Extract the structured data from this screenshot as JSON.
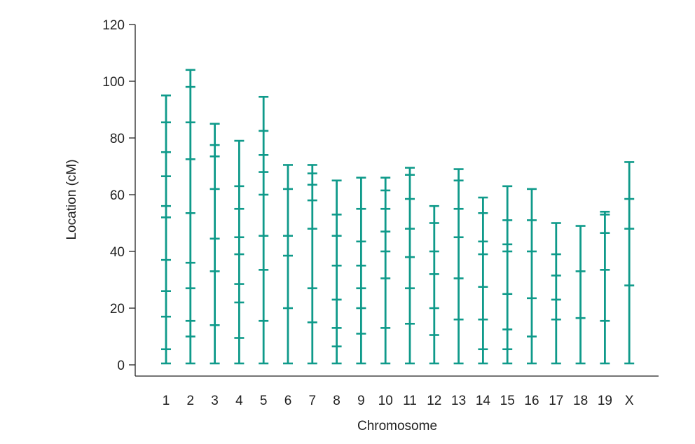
{
  "chart_data": {
    "type": "chromosome-marker-map",
    "title": "",
    "xlabel": "Chromosome",
    "ylabel": "Location (cM)",
    "ylim": [
      0,
      120
    ],
    "yticks": [
      0,
      20,
      40,
      60,
      80,
      100,
      120
    ],
    "grid": false,
    "color": "#0f9a8a",
    "categories": [
      "1",
      "2",
      "3",
      "4",
      "5",
      "6",
      "7",
      "8",
      "9",
      "10",
      "11",
      "12",
      "13",
      "14",
      "15",
      "16",
      "17",
      "18",
      "19",
      "X"
    ],
    "chromosome_lengths": [
      95,
      104,
      85,
      79,
      94.5,
      70.5,
      70.5,
      65,
      66,
      66,
      69.5,
      56,
      69,
      59,
      63,
      62,
      50,
      49,
      54,
      71.5
    ],
    "marker_positions": [
      [
        0.5,
        5.5,
        17,
        26,
        37,
        52,
        56,
        66.5,
        75,
        85.5,
        95
      ],
      [
        0.5,
        10,
        15.5,
        27,
        36,
        53.5,
        72.5,
        85.5,
        98,
        104
      ],
      [
        0.5,
        14,
        33,
        44.5,
        62,
        73.5,
        77.5,
        85
      ],
      [
        0.5,
        9.5,
        22,
        28.5,
        39,
        45,
        55,
        63,
        79
      ],
      [
        0.5,
        15.5,
        33.5,
        45.5,
        60,
        68,
        74,
        82.5,
        94.5
      ],
      [
        0.5,
        20,
        38.5,
        45.5,
        62,
        70.5
      ],
      [
        0.5,
        15,
        27,
        48,
        58,
        63.5,
        67.5,
        70.5
      ],
      [
        0.5,
        6.5,
        13,
        23,
        35,
        45.5,
        53,
        65
      ],
      [
        0.5,
        11,
        20,
        27,
        35,
        43.5,
        55,
        66
      ],
      [
        0.5,
        13,
        30.5,
        40,
        47,
        55,
        61.5,
        66
      ],
      [
        0.5,
        14.5,
        27,
        38,
        48,
        58.5,
        67,
        69.5
      ],
      [
        0.5,
        10.5,
        20,
        32,
        40,
        50,
        56
      ],
      [
        0.5,
        16,
        30.5,
        45,
        55,
        65,
        69
      ],
      [
        0.5,
        5.5,
        16,
        27.5,
        39,
        43.5,
        53.5,
        59
      ],
      [
        0.5,
        5.5,
        12.5,
        25,
        40,
        42.5,
        51,
        63
      ],
      [
        0.5,
        10,
        23.5,
        40,
        51,
        62
      ],
      [
        0.5,
        16,
        23,
        31.5,
        39,
        50
      ],
      [
        0.5,
        16.5,
        33,
        49
      ],
      [
        0.5,
        15.5,
        33.5,
        46.5,
        53,
        54
      ],
      [
        0.5,
        28,
        48,
        58.5,
        71.5
      ]
    ]
  }
}
